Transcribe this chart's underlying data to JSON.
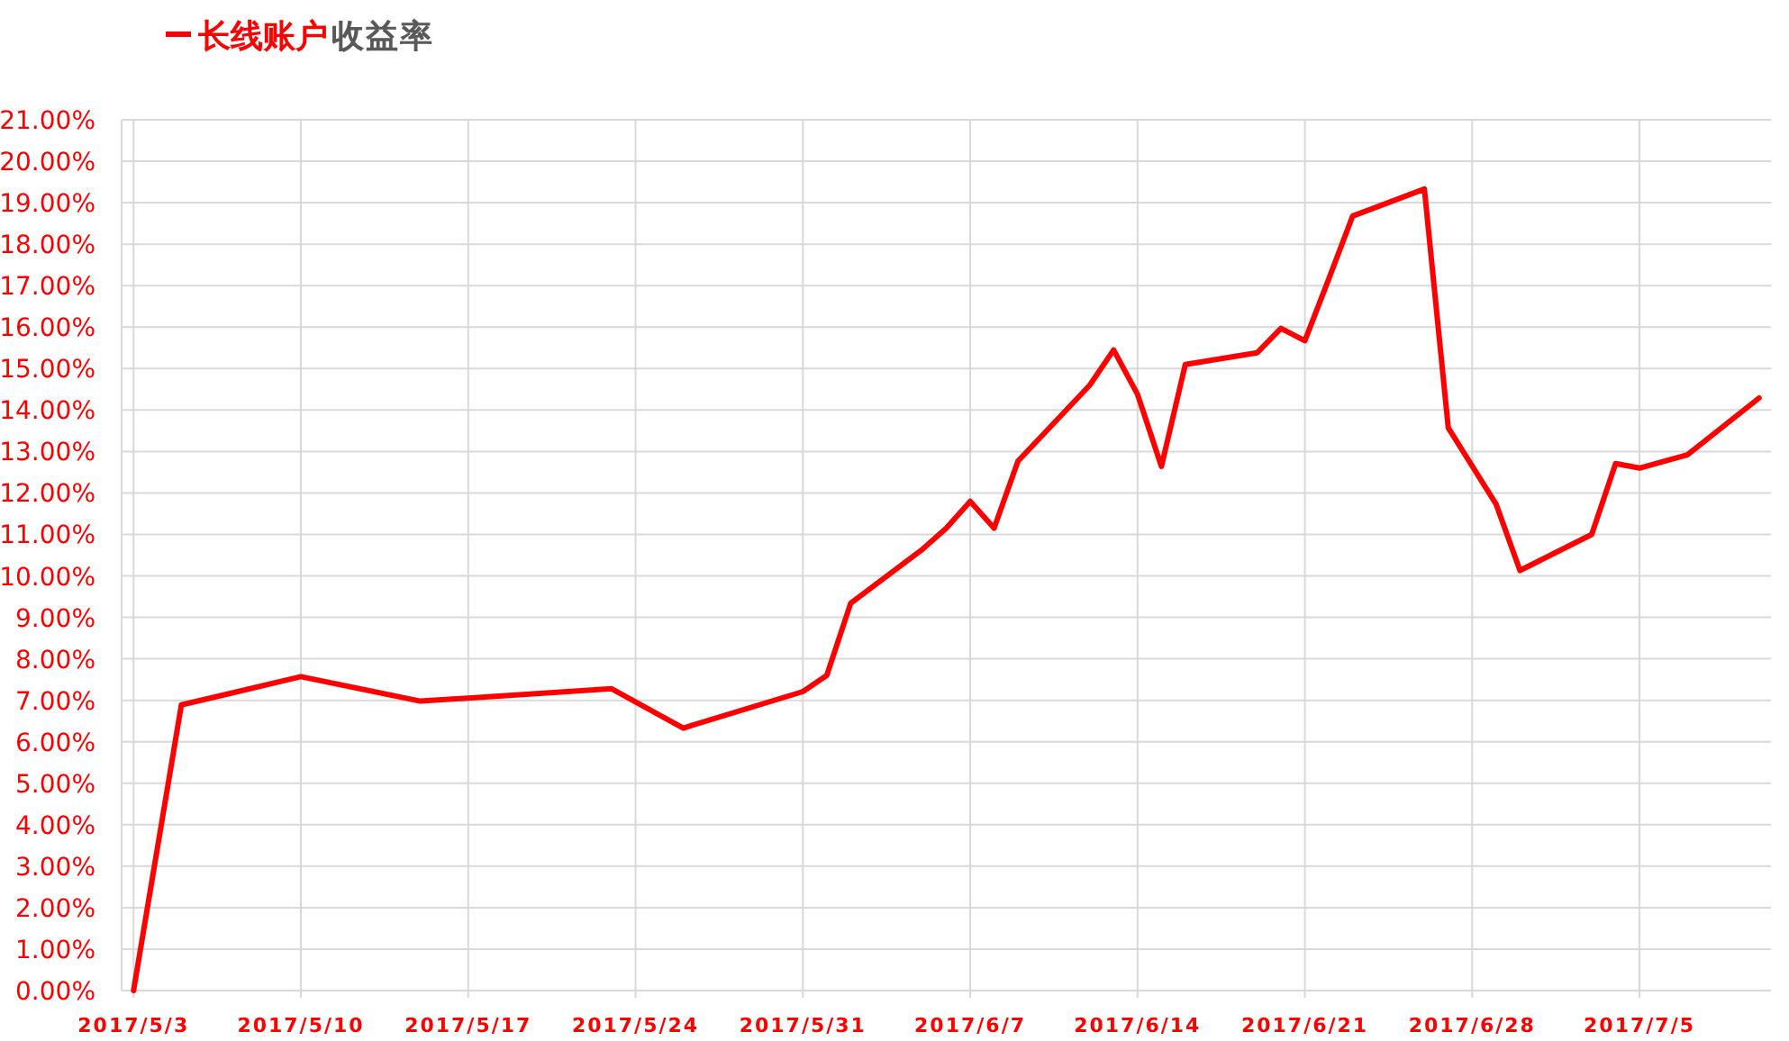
{
  "chart_data": {
    "type": "line",
    "title": "收益率",
    "x": [
      "2017-05-03",
      "2017-05-05",
      "2017-05-10",
      "2017-05-15",
      "2017-05-23",
      "2017-05-26",
      "2017-05-31",
      "2017-06-01",
      "2017-06-02",
      "2017-06-05",
      "2017-06-06",
      "2017-06-07",
      "2017-06-08",
      "2017-06-09",
      "2017-06-12",
      "2017-06-13",
      "2017-06-14",
      "2017-06-15",
      "2017-06-16",
      "2017-06-19",
      "2017-06-20",
      "2017-06-21",
      "2017-06-22",
      "2017-06-23",
      "2017-06-26",
      "2017-06-27",
      "2017-06-29",
      "2017-06-30",
      "2017-07-03",
      "2017-07-04",
      "2017-07-05",
      "2017-07-07",
      "2017-07-10"
    ],
    "series": [
      {
        "name": "长线账户",
        "color": "#ff0000",
        "values": [
          0,
          6.89,
          7.57,
          6.98,
          7.28,
          6.33,
          7.21,
          7.6,
          9.34,
          10.64,
          11.15,
          11.8,
          11.15,
          12.77,
          14.6,
          15.45,
          14.38,
          12.64,
          15.1,
          15.38,
          15.97,
          15.67,
          17.16,
          18.68,
          19.33,
          13.57,
          11.73,
          10.13,
          11.0,
          12.71,
          12.6,
          12.92,
          14.29
        ]
      }
    ],
    "xlim": [
      "2017-05-02T12:00",
      "2017-07-10T12:00"
    ],
    "xticks": [
      {
        "value": "2017-05-03",
        "label": "2017/5/3"
      },
      {
        "value": "2017-05-10",
        "label": "2017/5/10"
      },
      {
        "value": "2017-05-17",
        "label": "2017/5/17"
      },
      {
        "value": "2017-05-24",
        "label": "2017/5/24"
      },
      {
        "value": "2017-05-31",
        "label": "2017/5/31"
      },
      {
        "value": "2017-06-07",
        "label": "2017/6/7"
      },
      {
        "value": "2017-06-14",
        "label": "2017/6/14"
      },
      {
        "value": "2017-06-21",
        "label": "2017/6/21"
      },
      {
        "value": "2017-06-28",
        "label": "2017/6/28"
      },
      {
        "value": "2017-07-05",
        "label": "2017/7/5"
      }
    ],
    "ylim": [
      0,
      21
    ],
    "yticks": [
      {
        "value": 0,
        "label": "0.00%"
      },
      {
        "value": 1,
        "label": "1.00%"
      },
      {
        "value": 2,
        "label": "2.00%"
      },
      {
        "value": 3,
        "label": "3.00%"
      },
      {
        "value": 4,
        "label": "4.00%"
      },
      {
        "value": 5,
        "label": "5.00%"
      },
      {
        "value": 6,
        "label": "6.00%"
      },
      {
        "value": 7,
        "label": "7.00%"
      },
      {
        "value": 8,
        "label": "8.00%"
      },
      {
        "value": 9,
        "label": "9.00%"
      },
      {
        "value": 10,
        "label": "10.00%"
      },
      {
        "value": 11,
        "label": "11.00%"
      },
      {
        "value": 12,
        "label": "12.00%"
      },
      {
        "value": 13,
        "label": "13.00%"
      },
      {
        "value": 14,
        "label": "14.00%"
      },
      {
        "value": 15,
        "label": "15.00%"
      },
      {
        "value": 16,
        "label": "16.00%"
      },
      {
        "value": 17,
        "label": "17.00%"
      },
      {
        "value": 18,
        "label": "18.00%"
      },
      {
        "value": 19,
        "label": "19.00%"
      },
      {
        "value": 20,
        "label": "20.00%"
      },
      {
        "value": 21,
        "label": "21.00%"
      }
    ],
    "grid": true,
    "legend": "top left",
    "marker": "none",
    "line_style": "solid"
  }
}
